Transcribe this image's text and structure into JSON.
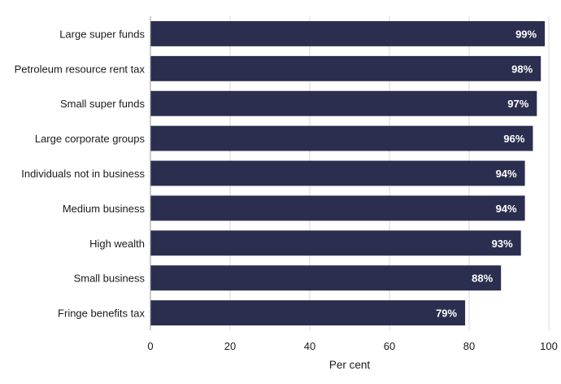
{
  "chart_data": {
    "type": "bar",
    "orientation": "horizontal",
    "categories": [
      "Large super funds",
      "Petroleum resource rent tax",
      "Small super funds",
      "Large corporate groups",
      "Individuals not in business",
      "Medium business",
      "High wealth",
      "Small business",
      "Fringe benefits tax"
    ],
    "values": [
      99,
      98,
      97,
      96,
      94,
      94,
      93,
      88,
      79
    ],
    "data_labels": [
      "99%",
      "98%",
      "97%",
      "96%",
      "94%",
      "94%",
      "93%",
      "88%",
      "79%"
    ],
    "title": "",
    "xlabel": "Per cent",
    "ylabel": "",
    "xlim": [
      0,
      100
    ],
    "xticks": [
      0,
      20,
      40,
      60,
      80,
      100
    ],
    "grid": "vertical",
    "legend": "none",
    "bar_color": "#2b2e4f"
  }
}
